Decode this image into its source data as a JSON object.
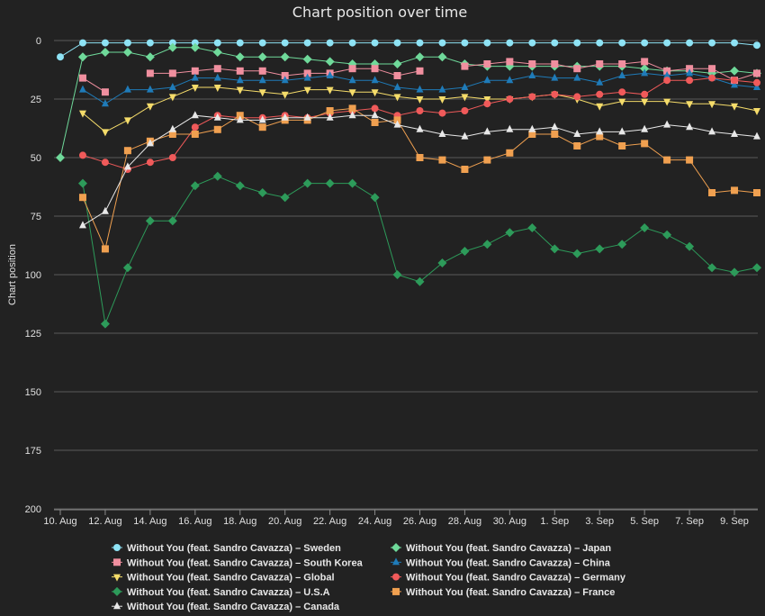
{
  "chart_data": {
    "type": "line",
    "title": "Chart position over time",
    "xlabel": "",
    "ylabel": "Chart position",
    "ylim": [
      0,
      200
    ],
    "y_reversed": true,
    "yticks": [
      0,
      25,
      50,
      75,
      100,
      125,
      150,
      175,
      200
    ],
    "grid": true,
    "legend_position": "bottom",
    "x": [
      "10. Aug",
      "11. Aug",
      "12. Aug",
      "13. Aug",
      "14. Aug",
      "15. Aug",
      "16. Aug",
      "17. Aug",
      "18. Aug",
      "19. Aug",
      "20. Aug",
      "21. Aug",
      "22. Aug",
      "23. Aug",
      "24. Aug",
      "25. Aug",
      "26. Aug",
      "27. Aug",
      "28. Aug",
      "29. Aug",
      "30. Aug",
      "31. Aug",
      "1. Sep",
      "2. Sep",
      "3. Sep",
      "4. Sep",
      "5. Sep",
      "6. Sep",
      "7. Sep",
      "8. Sep",
      "9. Sep",
      "10. Sep"
    ],
    "xtick_labels": [
      "10. Aug",
      "12. Aug",
      "14. Aug",
      "16. Aug",
      "18. Aug",
      "20. Aug",
      "22. Aug",
      "24. Aug",
      "26. Aug",
      "28. Aug",
      "30. Aug",
      "1. Sep",
      "3. Sep",
      "5. Sep",
      "7. Sep",
      "9. Sep"
    ],
    "series": [
      {
        "name": "Without You (feat. Sandro Cavazza) – Sweden",
        "color": "#8ee3f5",
        "marker": "circle",
        "values": [
          7,
          1,
          1,
          1,
          1,
          1,
          1,
          1,
          1,
          1,
          1,
          1,
          1,
          1,
          1,
          1,
          1,
          1,
          1,
          1,
          1,
          1,
          1,
          1,
          1,
          1,
          1,
          1,
          1,
          1,
          1,
          2
        ]
      },
      {
        "name": "Without You (feat. Sandro Cavazza) – Japan",
        "color": "#6fd99a",
        "marker": "diamond",
        "values": [
          50,
          7,
          5,
          5,
          7,
          3,
          3,
          5,
          7,
          7,
          7,
          8,
          9,
          10,
          10,
          10,
          7,
          7,
          10,
          11,
          11,
          11,
          11,
          11,
          11,
          11,
          12,
          13,
          13,
          14,
          13,
          14
        ]
      },
      {
        "name": "Without You (feat. Sandro Cavazza) – South Korea",
        "color": "#f08f9f",
        "marker": "square",
        "values": [
          null,
          16,
          22,
          null,
          14,
          14,
          13,
          12,
          13,
          13,
          15,
          14,
          14,
          12,
          12,
          15,
          13,
          null,
          11,
          10,
          9,
          10,
          10,
          12,
          10,
          10,
          9,
          13,
          12,
          12,
          17,
          14
        ]
      },
      {
        "name": "Without You (feat. Sandro Cavazza) – China",
        "color": "#1f7bb8",
        "marker": "triangle",
        "values": [
          null,
          21,
          27,
          21,
          21,
          20,
          16,
          16,
          17,
          17,
          17,
          16,
          15,
          17,
          17,
          20,
          21,
          21,
          20,
          17,
          17,
          15,
          16,
          16,
          18,
          15,
          14,
          15,
          14,
          16,
          19,
          20
        ]
      },
      {
        "name": "Without You (feat. Sandro Cavazza) – Global",
        "color": "#f5dc6a",
        "marker": "triangle-down",
        "values": [
          null,
          31,
          39,
          34,
          28,
          24,
          20,
          20,
          21,
          22,
          23,
          21,
          21,
          22,
          22,
          24,
          25,
          25,
          24,
          25,
          25,
          24,
          23,
          25,
          28,
          26,
          26,
          26,
          27,
          27,
          28,
          30
        ]
      },
      {
        "name": "Without You (feat. Sandro Cavazza) – Germany",
        "color": "#f05a5a",
        "marker": "circle",
        "values": [
          null,
          49,
          52,
          55,
          52,
          50,
          37,
          32,
          33,
          33,
          32,
          33,
          31,
          30,
          29,
          32,
          30,
          31,
          30,
          27,
          25,
          24,
          23,
          24,
          23,
          22,
          23,
          17,
          17,
          16,
          17,
          18
        ]
      },
      {
        "name": "Without You (feat. Sandro Cavazza) – U.S.A",
        "color": "#2d9b5a",
        "marker": "diamond",
        "values": [
          null,
          61,
          121,
          97,
          77,
          77,
          62,
          58,
          62,
          65,
          67,
          61,
          61,
          61,
          67,
          100,
          103,
          95,
          90,
          87,
          82,
          80,
          89,
          91,
          89,
          87,
          80,
          83,
          88,
          97,
          99,
          97
        ]
      },
      {
        "name": "Without You (feat. Sandro Cavazza) – France",
        "color": "#f0a050",
        "marker": "square",
        "values": [
          null,
          67,
          89,
          47,
          43,
          40,
          40,
          38,
          32,
          37,
          34,
          34,
          30,
          29,
          35,
          34,
          50,
          51,
          55,
          51,
          48,
          40,
          40,
          45,
          41,
          45,
          44,
          51,
          51,
          65,
          64,
          65
        ]
      },
      {
        "name": "Without You (feat. Sandro Cavazza) – Canada",
        "color": "#e8e8e8",
        "marker": "triangle",
        "values": [
          null,
          79,
          73,
          54,
          44,
          38,
          32,
          33,
          34,
          34,
          33,
          33,
          33,
          32,
          32,
          36,
          38,
          40,
          41,
          39,
          38,
          38,
          37,
          40,
          39,
          39,
          38,
          36,
          37,
          39,
          40,
          41
        ]
      }
    ]
  }
}
